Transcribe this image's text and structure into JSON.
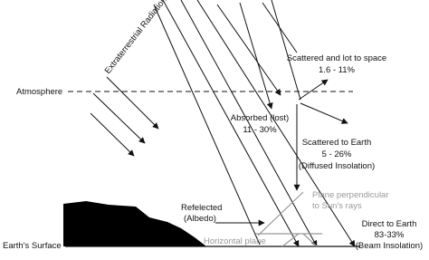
{
  "diagram": {
    "radiation_label": "Extraterrestrial Radiation (Iₒ)",
    "atmosphere": "Atmosphere",
    "scattered_space": {
      "title": "Scattered and lot to space",
      "range": "1.6 - 11%"
    },
    "absorbed": {
      "title": "Absorbed (lost)",
      "range": "11 - 30%"
    },
    "scattered_earth": {
      "title": "Scattered to Earth",
      "range": "5 - 26%",
      "note": "(Diffused Insolation)"
    },
    "plane_perpendicular": {
      "line1": "Plane perpendicular",
      "line2": "to Sun's rays"
    },
    "reflected": {
      "title": "Refelected",
      "note": "(Albedo)"
    },
    "direct": {
      "title": "Direct to Earth",
      "range": "83-33%",
      "note": "(Beam Insolation)"
    },
    "earth_surface": "Earth's Surface",
    "horizontal_plane": "Horizontal plane"
  }
}
